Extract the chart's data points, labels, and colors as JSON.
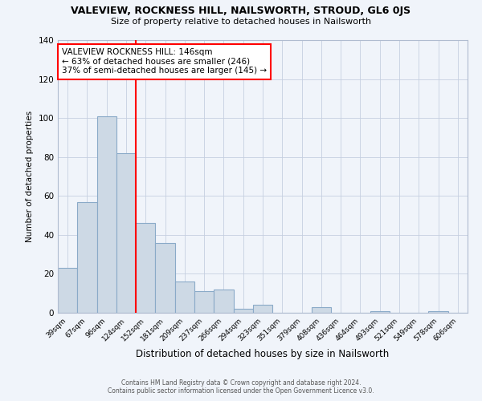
{
  "title": "VALEVIEW, ROCKNESS HILL, NAILSWORTH, STROUD, GL6 0JS",
  "subtitle": "Size of property relative to detached houses in Nailsworth",
  "xlabel": "Distribution of detached houses by size in Nailsworth",
  "ylabel": "Number of detached properties",
  "bar_labels": [
    "39sqm",
    "67sqm",
    "96sqm",
    "124sqm",
    "152sqm",
    "181sqm",
    "209sqm",
    "237sqm",
    "266sqm",
    "294sqm",
    "323sqm",
    "351sqm",
    "379sqm",
    "408sqm",
    "436sqm",
    "464sqm",
    "493sqm",
    "521sqm",
    "549sqm",
    "578sqm",
    "606sqm"
  ],
  "bar_values": [
    23,
    57,
    101,
    82,
    46,
    36,
    16,
    11,
    12,
    2,
    4,
    0,
    0,
    3,
    0,
    0,
    1,
    0,
    0,
    1,
    0
  ],
  "bar_color": "#cdd9e5",
  "bar_edge_color": "#8aaac8",
  "vline_index": 4,
  "vline_color": "red",
  "ylim": [
    0,
    140
  ],
  "yticks": [
    0,
    20,
    40,
    60,
    80,
    100,
    120,
    140
  ],
  "annotation_title": "VALEVIEW ROCKNESS HILL: 146sqm",
  "annotation_line1": "← 63% of detached houses are smaller (246)",
  "annotation_line2": "37% of semi-detached houses are larger (145) →",
  "footer_line1": "Contains HM Land Registry data © Crown copyright and database right 2024.",
  "footer_line2": "Contains public sector information licensed under the Open Government Licence v3.0.",
  "bg_color": "#f0f4fa",
  "grid_color": "#c5cfe0",
  "spine_color": "#b0bcd0"
}
